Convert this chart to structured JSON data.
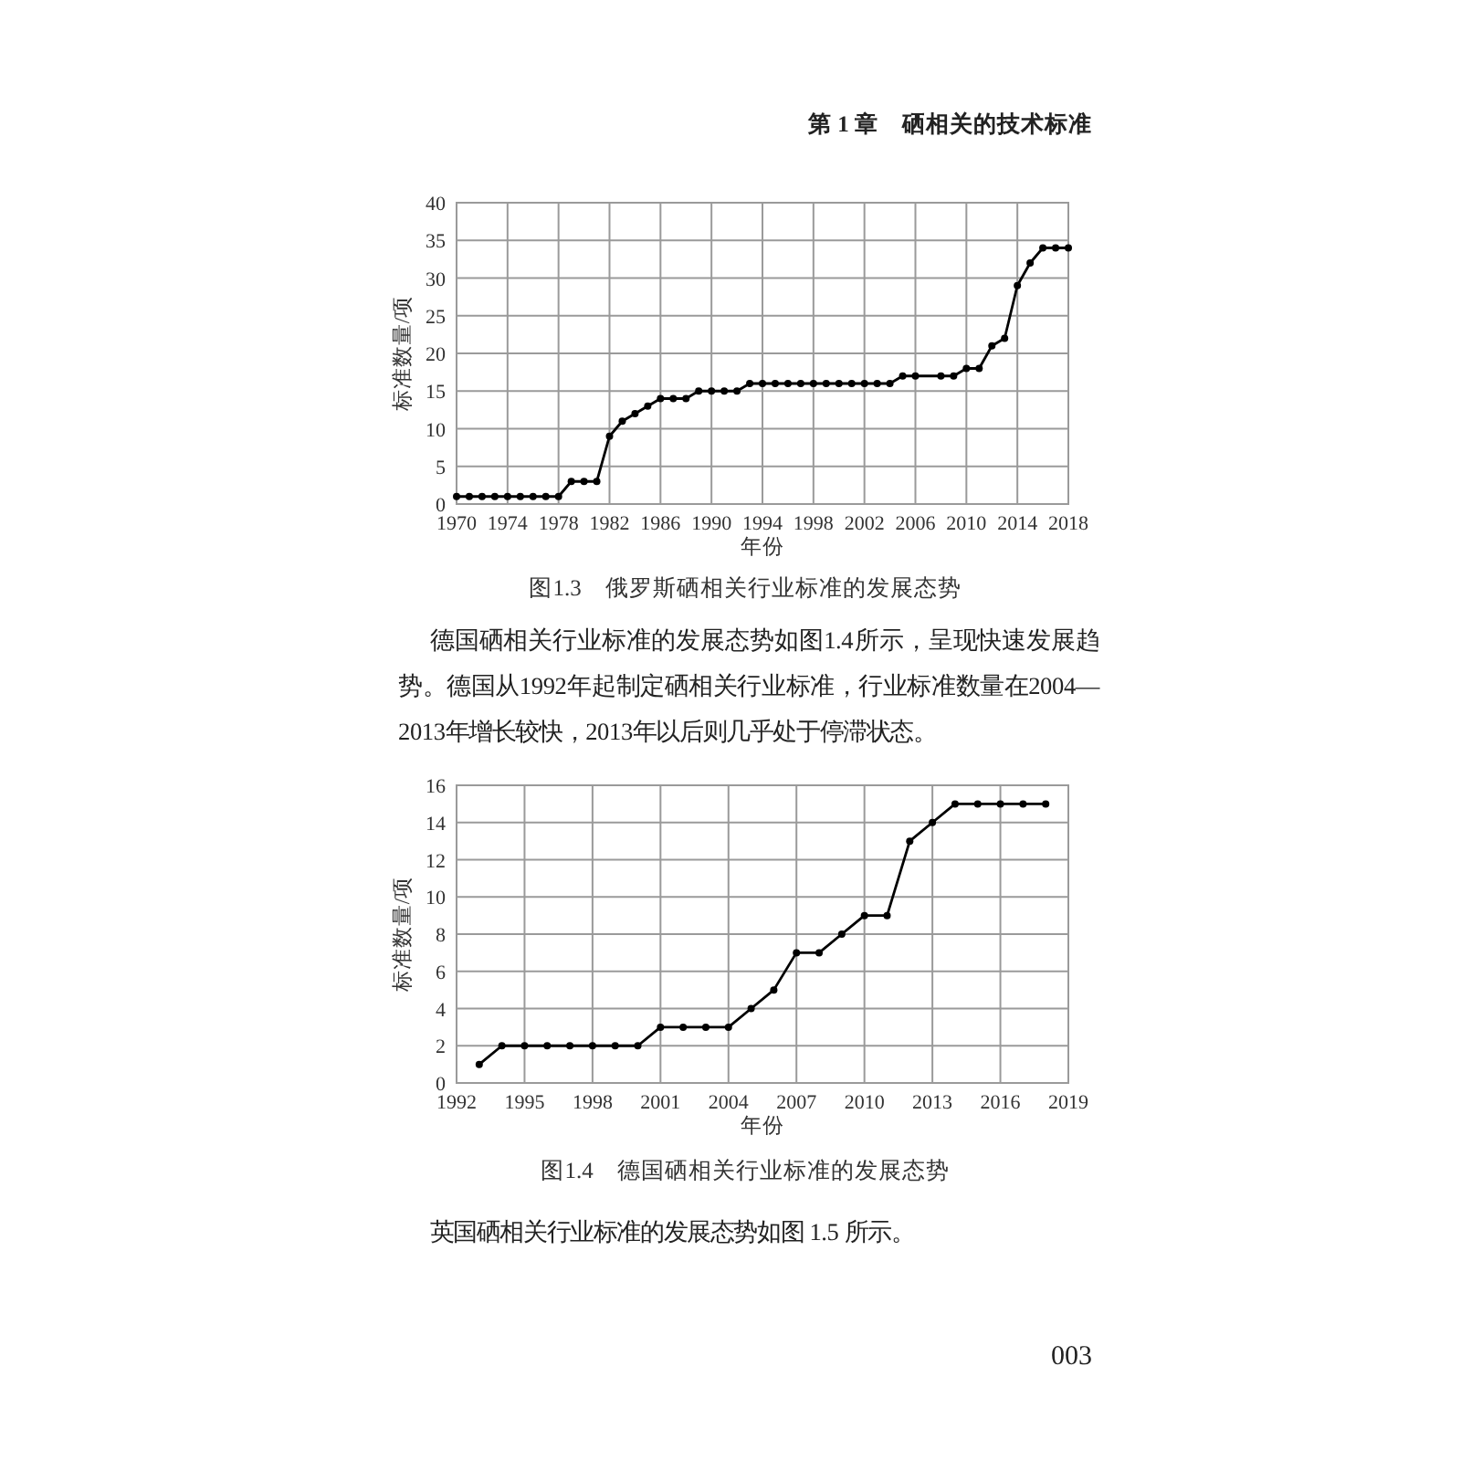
{
  "chart_data": [
    {
      "type": "line",
      "title": "图1.3　俄罗斯硒相关行业标准的发展态势",
      "xlabel": "年份",
      "ylabel": "标准数量/项",
      "x": [
        1970,
        1971,
        1972,
        1973,
        1974,
        1975,
        1976,
        1977,
        1978,
        1979,
        1980,
        1981,
        1982,
        1983,
        1984,
        1985,
        1986,
        1987,
        1988,
        1989,
        1990,
        1991,
        1992,
        1993,
        1994,
        1995,
        1996,
        1997,
        1998,
        1999,
        2000,
        2001,
        2002,
        2003,
        2004,
        2005,
        2006,
        2008,
        2009,
        2010,
        2011,
        2012,
        2013,
        2014,
        2015,
        2016,
        2017,
        2018
      ],
      "series": [
        {
          "color": "#000000",
          "values": [
            1,
            1,
            1,
            1,
            1,
            1,
            1,
            1,
            1,
            3,
            3,
            3,
            9,
            11,
            12,
            13,
            14,
            14,
            14,
            15,
            15,
            15,
            15,
            16,
            16,
            16,
            16,
            16,
            16,
            16,
            16,
            16,
            16,
            16,
            16,
            17,
            17,
            17,
            17,
            18,
            18,
            21,
            22,
            29,
            32,
            34,
            34,
            34
          ]
        }
      ],
      "xlim": [
        1970,
        2018
      ],
      "xticks": [
        1970,
        1974,
        1978,
        1982,
        1986,
        1990,
        1994,
        1998,
        2002,
        2006,
        2010,
        2014,
        2018
      ],
      "ylim": [
        0,
        40
      ],
      "yticks": [
        0,
        5,
        10,
        15,
        20,
        25,
        30,
        35,
        40
      ],
      "grid": true,
      "marker": "circle",
      "line_style": "solid",
      "annotations": [
        "第 1 章　硒相关的技术标准",
        "德国硒相关行业标准的发展态势如图1.4所示，呈现快速发展趋势。德国从1992年起制定硒相关行业标准，行业标准数量在2004—2013年增长较快，2013年以后则几乎处于停滞状态。"
      ]
    },
    {
      "type": "line",
      "title": "图1.4　德国硒相关行业标准的发展态势",
      "xlabel": "年份",
      "ylabel": "标准数量/项",
      "x": [
        1993,
        1994,
        1995,
        1996,
        1997,
        1998,
        1999,
        2000,
        2001,
        2002,
        2003,
        2004,
        2005,
        2006,
        2007,
        2008,
        2009,
        2010,
        2011,
        2012,
        2013,
        2014,
        2015,
        2016,
        2017,
        2018
      ],
      "series": [
        {
          "color": "#000000",
          "values": [
            1,
            2,
            2,
            2,
            2,
            2,
            2,
            2,
            3,
            3,
            3,
            3,
            4,
            5,
            7,
            7,
            8,
            9,
            9,
            13,
            14,
            15,
            15,
            15,
            15,
            15
          ]
        }
      ],
      "xlim": [
        1992,
        2019
      ],
      "xticks": [
        1992,
        1995,
        1998,
        2001,
        2004,
        2007,
        2010,
        2013,
        2016,
        2019
      ],
      "ylim": [
        0,
        16
      ],
      "yticks": [
        0,
        2,
        4,
        6,
        8,
        10,
        12,
        14,
        16
      ],
      "grid": true,
      "marker": "circle",
      "line_style": "solid",
      "annotations": [
        "英国硒相关行业标准的发展态势如图 1.5 所示。",
        "003"
      ]
    }
  ]
}
